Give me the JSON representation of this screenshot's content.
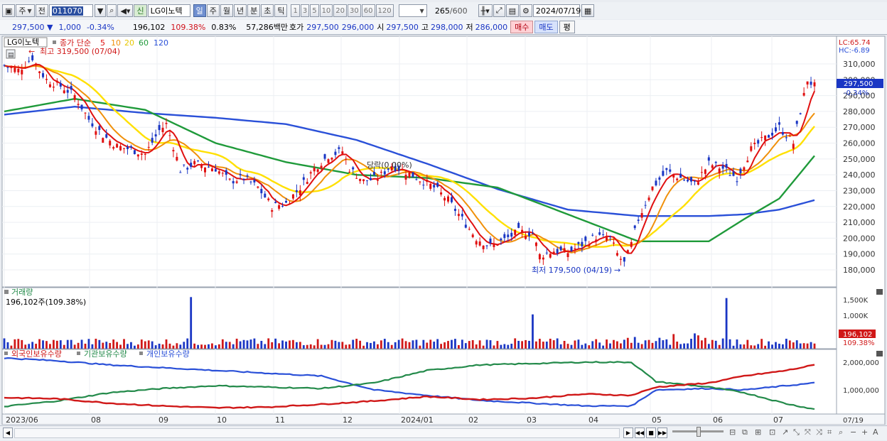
{
  "toolbar": {
    "type_main": "주",
    "type_prev": "전",
    "code": "011070",
    "name_badge": "신",
    "name": "LG이노텍",
    "periods": [
      "일",
      "주",
      "월",
      "년",
      "분",
      "초",
      "틱"
    ],
    "active_period": "일",
    "minutes": [
      "1",
      "3",
      "5",
      "10",
      "20",
      "30",
      "60",
      "120"
    ],
    "count": "265",
    "count_max": "/600",
    "date": "2024/07/19"
  },
  "quote": {
    "price": "297,500 ▼",
    "change": "1,000",
    "change_pct": "-0.34%",
    "volume": "196,102",
    "volume_ratio": "109.38%",
    "turnover_rate": "0.83%",
    "trade_value": "57,286백만",
    "ask_label": "호가",
    "ask": "297,500",
    "bid": "296,000",
    "open_label": "시",
    "open": "297,500",
    "high_label": "고",
    "high": "298,000",
    "low_label": "저",
    "low": "286,000",
    "buy_label": "매수",
    "sell_label": "매도",
    "eval_label": "평"
  },
  "price_panel": {
    "name_tag": "LG이노텍",
    "legend_prefix": "종가 단순",
    "ma_periods": [
      "5",
      "10",
      "20",
      "60",
      "120"
    ],
    "ma_colors": [
      "#e01010",
      "#f0900a",
      "#ffe000",
      "#1f9a3a",
      "#2a50d8"
    ],
    "lc": "LC:65.74",
    "hc": "HC:-6.89",
    "max_label": "최고 319,500 (07/04)",
    "min_label": "최저 179,500 (04/19)",
    "mid_label": "당락(0.00%)",
    "current_price_tag": "297,500",
    "current_pct_tag": "-0.34%",
    "y_ticks": [
      "310,000",
      "300,000",
      "290,000",
      "280,000",
      "270,000",
      "260,000",
      "250,000",
      "240,000",
      "230,000",
      "220,000",
      "210,000",
      "200,000",
      "190,000",
      "180,000"
    ]
  },
  "volume_panel": {
    "title": "거래량",
    "value_text": "196,102주(109.38%)",
    "y_ticks": [
      "1,500K",
      "1,000K"
    ],
    "tag_value": "196,102",
    "tag_pct": "109.38%"
  },
  "holdings_panel": {
    "series_labels": [
      "외국인보유수량",
      "기관보유수량",
      "개인보유수량"
    ],
    "series_colors": [
      "#d01818",
      "#238a4a",
      "#2a50d8"
    ],
    "y_ticks": [
      "2,000,000",
      "1,000,000"
    ]
  },
  "x_axis": {
    "labels": [
      "2023/06",
      "08",
      "09",
      "10",
      "11",
      "12",
      "2024/01",
      "02",
      "03",
      "04",
      "05",
      "06",
      "07"
    ],
    "right_label": "07/19"
  },
  "chart_data": {
    "type": "candlestick",
    "y_range": [
      175000,
      320000
    ],
    "anchors": [
      [
        0,
        309000
      ],
      [
        4,
        306000
      ],
      [
        8,
        314000
      ],
      [
        10,
        306000
      ],
      [
        12,
        300000
      ],
      [
        16,
        296000
      ],
      [
        20,
        290000
      ],
      [
        24,
        275000
      ],
      [
        28,
        265000
      ],
      [
        32,
        258000
      ],
      [
        36,
        256000
      ],
      [
        40,
        253000
      ],
      [
        44,
        268000
      ],
      [
        46,
        272000
      ],
      [
        48,
        258000
      ],
      [
        50,
        243000
      ],
      [
        54,
        247000
      ],
      [
        60,
        244000
      ],
      [
        64,
        236000
      ],
      [
        68,
        238000
      ],
      [
        72,
        232000
      ],
      [
        76,
        220000
      ],
      [
        80,
        222000
      ],
      [
        84,
        232000
      ],
      [
        88,
        244000
      ],
      [
        92,
        252000
      ],
      [
        96,
        255000
      ],
      [
        98,
        244000
      ],
      [
        102,
        236000
      ],
      [
        106,
        238000
      ],
      [
        110,
        246000
      ],
      [
        114,
        242000
      ],
      [
        118,
        237000
      ],
      [
        122,
        232000
      ],
      [
        126,
        224000
      ],
      [
        130,
        212000
      ],
      [
        134,
        200000
      ],
      [
        138,
        195000
      ],
      [
        142,
        199000
      ],
      [
        146,
        204000
      ],
      [
        150,
        203000
      ],
      [
        152,
        189000
      ],
      [
        156,
        192000
      ],
      [
        160,
        191000
      ],
      [
        164,
        196000
      ],
      [
        168,
        201000
      ],
      [
        172,
        200000
      ],
      [
        174,
        190000
      ],
      [
        176,
        184000
      ],
      [
        178,
        196000
      ],
      [
        180,
        212000
      ],
      [
        184,
        232000
      ],
      [
        188,
        242000
      ],
      [
        192,
        238000
      ],
      [
        196,
        234000
      ],
      [
        200,
        247000
      ],
      [
        204,
        244000
      ],
      [
        208,
        238000
      ],
      [
        212,
        256000
      ],
      [
        216,
        263000
      ],
      [
        220,
        270000
      ],
      [
        224,
        260000
      ],
      [
        226,
        280000
      ],
      [
        228,
        300000
      ],
      [
        230,
        296000
      ]
    ],
    "ma60": [
      [
        0,
        280000
      ],
      [
        20,
        288000
      ],
      [
        40,
        281000
      ],
      [
        60,
        260000
      ],
      [
        80,
        248000
      ],
      [
        100,
        240000
      ],
      [
        120,
        238000
      ],
      [
        140,
        232000
      ],
      [
        160,
        215000
      ],
      [
        180,
        198000
      ],
      [
        200,
        198000
      ],
      [
        210,
        212000
      ],
      [
        220,
        225000
      ],
      [
        230,
        252000
      ]
    ],
    "ma120": [
      [
        0,
        278000
      ],
      [
        20,
        283000
      ],
      [
        40,
        279000
      ],
      [
        60,
        276000
      ],
      [
        80,
        272000
      ],
      [
        100,
        262000
      ],
      [
        120,
        247000
      ],
      [
        140,
        231000
      ],
      [
        160,
        218000
      ],
      [
        180,
        214000
      ],
      [
        200,
        214000
      ],
      [
        210,
        215000
      ],
      [
        220,
        218000
      ],
      [
        230,
        224000
      ]
    ],
    "volume_spikes": [
      [
        53,
        1580000
      ],
      [
        150,
        1050000
      ],
      [
        205,
        1550000
      ]
    ],
    "foreign": [
      [
        0,
        720000
      ],
      [
        15,
        680000
      ],
      [
        30,
        520000
      ],
      [
        45,
        420000
      ],
      [
        60,
        350000
      ],
      [
        75,
        380000
      ],
      [
        90,
        480000
      ],
      [
        105,
        600000
      ],
      [
        120,
        760000
      ],
      [
        135,
        650000
      ],
      [
        150,
        700000
      ],
      [
        165,
        850000
      ],
      [
        178,
        800000
      ],
      [
        185,
        1100000
      ],
      [
        200,
        1250000
      ],
      [
        210,
        1500000
      ],
      [
        222,
        1700000
      ],
      [
        230,
        1900000
      ]
    ],
    "institution": [
      [
        0,
        400000
      ],
      [
        15,
        600000
      ],
      [
        30,
        900000
      ],
      [
        45,
        1050000
      ],
      [
        60,
        1150000
      ],
      [
        75,
        1100000
      ],
      [
        90,
        1050000
      ],
      [
        105,
        1250000
      ],
      [
        120,
        1700000
      ],
      [
        135,
        1900000
      ],
      [
        150,
        1950000
      ],
      [
        165,
        2000000
      ],
      [
        178,
        2000000
      ],
      [
        185,
        1300000
      ],
      [
        200,
        1100000
      ],
      [
        210,
        900000
      ],
      [
        222,
        500000
      ],
      [
        230,
        300000
      ]
    ],
    "individual": [
      [
        0,
        2150000
      ],
      [
        15,
        2050000
      ],
      [
        30,
        1900000
      ],
      [
        45,
        1800000
      ],
      [
        60,
        1700000
      ],
      [
        75,
        1600000
      ],
      [
        90,
        1500000
      ],
      [
        105,
        1000000
      ],
      [
        120,
        800000
      ],
      [
        135,
        620000
      ],
      [
        150,
        520000
      ],
      [
        165,
        420000
      ],
      [
        178,
        420000
      ],
      [
        185,
        1000000
      ],
      [
        200,
        1050000
      ],
      [
        210,
        1000000
      ],
      [
        222,
        1150000
      ],
      [
        230,
        1250000
      ]
    ]
  }
}
